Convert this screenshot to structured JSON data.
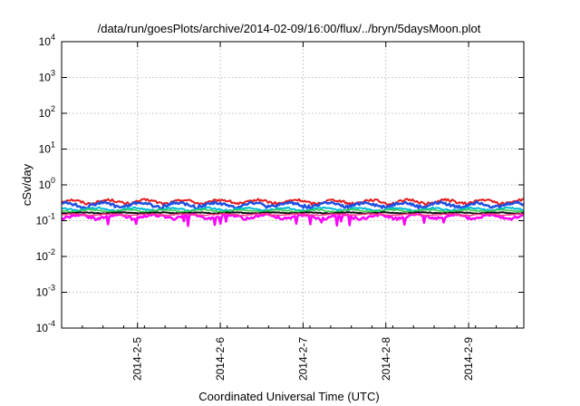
{
  "chart_data": {
    "type": "line",
    "title": "/data/run/goesPlots/archive/2014-02-09/16:00/flux/../bryn/5daysMoon.plot",
    "xlabel": "Coordinated Universal Time (UTC)",
    "ylabel": "cSv/day",
    "yscale": "log",
    "ylim": [
      0.0001,
      10000
    ],
    "xlim": [
      "2014-02-04 02:00",
      "2014-02-09 16:00"
    ],
    "x_ticks": [
      "2014-2-5",
      "2014-2-6",
      "2014-2-7",
      "2014-2-8",
      "2014-2-9"
    ],
    "y_ticks": [
      {
        "base": "10",
        "exp": "-4"
      },
      {
        "base": "10",
        "exp": "-3"
      },
      {
        "base": "10",
        "exp": "-2"
      },
      {
        "base": "10",
        "exp": "-1"
      },
      {
        "base": "10",
        "exp": "0"
      },
      {
        "base": "10",
        "exp": "1"
      },
      {
        "base": "10",
        "exp": "2"
      },
      {
        "base": "10",
        "exp": "3"
      },
      {
        "base": "10",
        "exp": "4"
      }
    ],
    "grid": true,
    "legend": "none",
    "series": [
      {
        "color": "#e41a1c",
        "level": 0.34,
        "amplitude": 0.12,
        "width": 2
      },
      {
        "color": "#1f4fe0",
        "level": 0.28,
        "amplitude": 0.14,
        "width": 2.5
      },
      {
        "color": "#00bcd4",
        "level": 0.21,
        "amplitude": 0.08,
        "width": 2
      },
      {
        "color": "#2ecc40",
        "level": 0.19,
        "amplitude": 0.06,
        "width": 1.5
      },
      {
        "color": "#111111",
        "level": 0.165,
        "amplitude": 0.03,
        "width": 2
      },
      {
        "color": "#ff00ff",
        "level": 0.13,
        "amplitude": 0.12,
        "width": 2.5
      },
      {
        "color": "#ff3a8a",
        "level": 0.148,
        "amplitude": 0.04,
        "width": 1.5
      }
    ]
  }
}
